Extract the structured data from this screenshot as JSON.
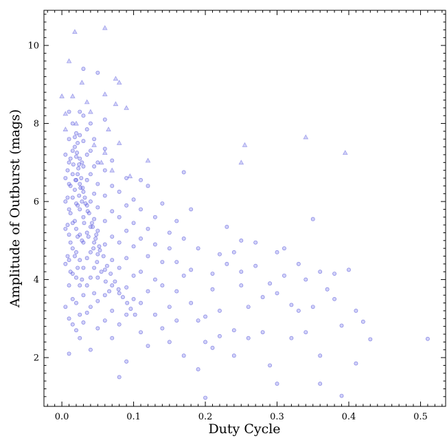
{
  "chart_data": {
    "type": "scatter",
    "title": "",
    "xlabel": "Duty Cycle",
    "ylabel": "Amplitude of Outburst (mags)",
    "xlim": [
      -0.025,
      0.535
    ],
    "ylim": [
      0.75,
      10.9
    ],
    "x_ticks": [
      0.0,
      0.1,
      0.2,
      0.3,
      0.4,
      0.5
    ],
    "x_tick_labels": [
      "0.0",
      "0.1",
      "0.2",
      "0.3",
      "0.4",
      "0.5"
    ],
    "y_ticks": [
      2,
      4,
      6,
      8,
      10
    ],
    "y_tick_labels": [
      "2",
      "4",
      "6",
      "8",
      "10"
    ],
    "grid": false,
    "legend": "none",
    "colors": {
      "circle_fill": "#7777ee",
      "circle_stroke": "#3333cc",
      "triangle_fill": "#9999ee",
      "triangle_stroke": "#5555dd"
    },
    "series": [
      {
        "marker": "circle",
        "points": [
          [
            0.51,
            2.48
          ],
          [
            0.43,
            2.47
          ],
          [
            0.42,
            2.92
          ],
          [
            0.41,
            3.2
          ],
          [
            0.41,
            1.85
          ],
          [
            0.4,
            4.25
          ],
          [
            0.39,
            2.82
          ],
          [
            0.39,
            1.02
          ],
          [
            0.38,
            4.15
          ],
          [
            0.38,
            3.5
          ],
          [
            0.37,
            3.75
          ],
          [
            0.36,
            4.2
          ],
          [
            0.36,
            2.05
          ],
          [
            0.36,
            1.33
          ],
          [
            0.35,
            5.55
          ],
          [
            0.35,
            3.3
          ],
          [
            0.34,
            4.0
          ],
          [
            0.34,
            2.65
          ],
          [
            0.33,
            4.4
          ],
          [
            0.33,
            3.2
          ],
          [
            0.32,
            3.35
          ],
          [
            0.32,
            2.5
          ],
          [
            0.31,
            4.8
          ],
          [
            0.31,
            4.1
          ],
          [
            0.3,
            3.65
          ],
          [
            0.3,
            4.7
          ],
          [
            0.3,
            1.33
          ],
          [
            0.29,
            3.9
          ],
          [
            0.29,
            1.8
          ],
          [
            0.28,
            3.55
          ],
          [
            0.28,
            2.65
          ],
          [
            0.27,
            4.95
          ],
          [
            0.27,
            4.35
          ],
          [
            0.26,
            3.3
          ],
          [
            0.26,
            2.5
          ],
          [
            0.25,
            5.0
          ],
          [
            0.25,
            4.2
          ],
          [
            0.25,
            3.85
          ],
          [
            0.24,
            4.7
          ],
          [
            0.24,
            2.7
          ],
          [
            0.24,
            2.05
          ],
          [
            0.23,
            5.35
          ],
          [
            0.23,
            4.4
          ],
          [
            0.22,
            3.2
          ],
          [
            0.22,
            4.65
          ],
          [
            0.22,
            2.55
          ],
          [
            0.21,
            3.75
          ],
          [
            0.21,
            2.25
          ],
          [
            0.21,
            4.15
          ],
          [
            0.2,
            3.05
          ],
          [
            0.2,
            2.4
          ],
          [
            0.2,
            0.97
          ],
          [
            0.19,
            4.8
          ],
          [
            0.19,
            2.95
          ],
          [
            0.19,
            1.7
          ],
          [
            0.18,
            5.8
          ],
          [
            0.18,
            4.25
          ],
          [
            0.18,
            3.4
          ],
          [
            0.17,
            6.75
          ],
          [
            0.17,
            5.05
          ],
          [
            0.17,
            4.1
          ],
          [
            0.17,
            2.05
          ],
          [
            0.16,
            5.5
          ],
          [
            0.16,
            4.45
          ],
          [
            0.16,
            3.7
          ],
          [
            0.16,
            2.95
          ],
          [
            0.15,
            5.2
          ],
          [
            0.15,
            4.8
          ],
          [
            0.15,
            3.3
          ],
          [
            0.15,
            2.4
          ],
          [
            0.14,
            5.95
          ],
          [
            0.14,
            4.45
          ],
          [
            0.14,
            3.85
          ],
          [
            0.14,
            2.75
          ],
          [
            0.13,
            5.6
          ],
          [
            0.13,
            4.9
          ],
          [
            0.13,
            4.0
          ],
          [
            0.13,
            3.1
          ],
          [
            0.12,
            6.4
          ],
          [
            0.12,
            5.3
          ],
          [
            0.12,
            4.6
          ],
          [
            0.12,
            3.7
          ],
          [
            0.12,
            2.3
          ],
          [
            0.11,
            6.55
          ],
          [
            0.11,
            5.8
          ],
          [
            0.11,
            5.05
          ],
          [
            0.11,
            4.2
          ],
          [
            0.11,
            3.4
          ],
          [
            0.11,
            2.65
          ],
          [
            0.1,
            6.05
          ],
          [
            0.1,
            5.45
          ],
          [
            0.1,
            4.85
          ],
          [
            0.1,
            4.1
          ],
          [
            0.1,
            3.5
          ],
          [
            0.09,
            6.6
          ],
          [
            0.09,
            5.9
          ],
          [
            0.09,
            5.25
          ],
          [
            0.09,
            4.55
          ],
          [
            0.09,
            3.8
          ],
          [
            0.09,
            3.1
          ],
          [
            0.09,
            1.9
          ],
          [
            0.08,
            6.25
          ],
          [
            0.08,
            5.6
          ],
          [
            0.08,
            4.95
          ],
          [
            0.08,
            4.3
          ],
          [
            0.08,
            3.65
          ],
          [
            0.08,
            2.85
          ],
          [
            0.08,
            1.5
          ],
          [
            0.07,
            7.05
          ],
          [
            0.07,
            6.4
          ],
          [
            0.07,
            5.75
          ],
          [
            0.07,
            5.1
          ],
          [
            0.07,
            4.5
          ],
          [
            0.07,
            3.85
          ],
          [
            0.07,
            3.2
          ],
          [
            0.07,
            2.5
          ],
          [
            0.06,
            7.35
          ],
          [
            0.06,
            6.8
          ],
          [
            0.06,
            6.15
          ],
          [
            0.06,
            5.5
          ],
          [
            0.06,
            4.9
          ],
          [
            0.06,
            4.25
          ],
          [
            0.06,
            3.6
          ],
          [
            0.06,
            2.95
          ],
          [
            0.06,
            8.1
          ],
          [
            0.05,
            7.0
          ],
          [
            0.05,
            6.45
          ],
          [
            0.05,
            5.85
          ],
          [
            0.05,
            5.25
          ],
          [
            0.05,
            4.65
          ],
          [
            0.05,
            4.05
          ],
          [
            0.05,
            3.45
          ],
          [
            0.05,
            2.75
          ],
          [
            0.05,
            9.3
          ],
          [
            0.045,
            7.6
          ],
          [
            0.045,
            6.9
          ],
          [
            0.045,
            6.2
          ],
          [
            0.045,
            5.55
          ],
          [
            0.045,
            4.95
          ],
          [
            0.045,
            4.3
          ],
          [
            0.045,
            3.65
          ],
          [
            0.04,
            8.0
          ],
          [
            0.04,
            7.3
          ],
          [
            0.04,
            6.7
          ],
          [
            0.04,
            6.0
          ],
          [
            0.04,
            5.35
          ],
          [
            0.04,
            4.7
          ],
          [
            0.04,
            4.05
          ],
          [
            0.04,
            3.3
          ],
          [
            0.04,
            2.2
          ],
          [
            0.035,
            7.85
          ],
          [
            0.035,
            7.2
          ],
          [
            0.035,
            6.55
          ],
          [
            0.035,
            5.9
          ],
          [
            0.035,
            5.2
          ],
          [
            0.035,
            4.55
          ],
          [
            0.035,
            3.85
          ],
          [
            0.035,
            3.15
          ],
          [
            0.03,
            9.4
          ],
          [
            0.03,
            8.2
          ],
          [
            0.03,
            7.55
          ],
          [
            0.03,
            6.9
          ],
          [
            0.03,
            6.25
          ],
          [
            0.03,
            5.6
          ],
          [
            0.03,
            4.95
          ],
          [
            0.03,
            4.3
          ],
          [
            0.03,
            3.6
          ],
          [
            0.03,
            2.9
          ],
          [
            0.028,
            7.0
          ],
          [
            0.028,
            6.0
          ],
          [
            0.028,
            5.0
          ],
          [
            0.028,
            4.0
          ],
          [
            0.025,
            8.3
          ],
          [
            0.025,
            7.7
          ],
          [
            0.025,
            7.1
          ],
          [
            0.025,
            6.45
          ],
          [
            0.025,
            5.8
          ],
          [
            0.025,
            5.15
          ],
          [
            0.025,
            4.5
          ],
          [
            0.025,
            3.85
          ],
          [
            0.025,
            3.1
          ],
          [
            0.025,
            2.5
          ],
          [
            0.022,
            7.5
          ],
          [
            0.022,
            6.7
          ],
          [
            0.022,
            5.9
          ],
          [
            0.022,
            5.1
          ],
          [
            0.022,
            4.3
          ],
          [
            0.02,
            7.75
          ],
          [
            0.02,
            7.15
          ],
          [
            0.02,
            6.55
          ],
          [
            0.02,
            5.95
          ],
          [
            0.02,
            5.3
          ],
          [
            0.02,
            4.7
          ],
          [
            0.02,
            4.05
          ],
          [
            0.02,
            3.4
          ],
          [
            0.02,
            2.7
          ],
          [
            0.018,
            7.4
          ],
          [
            0.018,
            6.3
          ],
          [
            0.018,
            5.5
          ],
          [
            0.018,
            4.6
          ],
          [
            0.015,
            8.0
          ],
          [
            0.015,
            7.3
          ],
          [
            0.015,
            6.7
          ],
          [
            0.015,
            6.1
          ],
          [
            0.015,
            5.45
          ],
          [
            0.015,
            4.8
          ],
          [
            0.015,
            4.15
          ],
          [
            0.015,
            3.5
          ],
          [
            0.015,
            2.85
          ],
          [
            0.012,
            7.1
          ],
          [
            0.012,
            6.4
          ],
          [
            0.012,
            5.7
          ],
          [
            0.012,
            4.95
          ],
          [
            0.012,
            4.2
          ],
          [
            0.01,
            8.3
          ],
          [
            0.01,
            7.6
          ],
          [
            0.01,
            7.0
          ],
          [
            0.01,
            6.45
          ],
          [
            0.01,
            5.8
          ],
          [
            0.01,
            5.15
          ],
          [
            0.01,
            4.5
          ],
          [
            0.01,
            3.85
          ],
          [
            0.01,
            3.0
          ],
          [
            0.01,
            2.1
          ],
          [
            0.008,
            6.8
          ],
          [
            0.008,
            6.1
          ],
          [
            0.008,
            5.4
          ],
          [
            0.008,
            4.6
          ],
          [
            0.005,
            7.2
          ],
          [
            0.005,
            6.6
          ],
          [
            0.005,
            6.0
          ],
          [
            0.005,
            5.3
          ],
          [
            0.005,
            4.4
          ],
          [
            0.005,
            3.3
          ],
          [
            0.024,
            6.95
          ],
          [
            0.026,
            6.35
          ],
          [
            0.032,
            6.1
          ],
          [
            0.036,
            5.75
          ],
          [
            0.042,
            5.45
          ],
          [
            0.048,
            5.15
          ],
          [
            0.052,
            4.85
          ],
          [
            0.058,
            4.6
          ],
          [
            0.063,
            4.35
          ],
          [
            0.068,
            4.15
          ],
          [
            0.074,
            3.95
          ],
          [
            0.079,
            3.75
          ],
          [
            0.085,
            3.55
          ],
          [
            0.091,
            3.4
          ],
          [
            0.096,
            3.25
          ],
          [
            0.102,
            3.1
          ],
          [
            0.018,
            7.65
          ],
          [
            0.021,
            7.25
          ],
          [
            0.023,
            6.85
          ],
          [
            0.027,
            6.6
          ],
          [
            0.029,
            6.35
          ],
          [
            0.033,
            5.95
          ],
          [
            0.038,
            5.7
          ],
          [
            0.043,
            5.35
          ],
          [
            0.047,
            5.05
          ],
          [
            0.053,
            4.75
          ],
          [
            0.016,
            6.95
          ],
          [
            0.019,
            6.55
          ],
          [
            0.024,
            6.15
          ],
          [
            0.031,
            5.45
          ],
          [
            0.037,
            5.1
          ],
          [
            0.044,
            4.8
          ],
          [
            0.049,
            4.45
          ],
          [
            0.055,
            4.2
          ],
          [
            0.061,
            3.95
          ],
          [
            0.066,
            3.7
          ]
        ]
      },
      {
        "marker": "triangle",
        "points": [
          [
            0.018,
            10.35
          ],
          [
            0.06,
            10.45
          ],
          [
            0.01,
            9.6
          ],
          [
            0.028,
            9.05
          ],
          [
            0.075,
            9.15
          ],
          [
            0.08,
            9.05
          ],
          [
            0.06,
            8.75
          ],
          [
            0.075,
            8.5
          ],
          [
            0.035,
            8.55
          ],
          [
            0.0,
            8.7
          ],
          [
            0.015,
            8.7
          ],
          [
            0.005,
            8.25
          ],
          [
            0.04,
            8.3
          ],
          [
            0.065,
            7.85
          ],
          [
            0.09,
            8.4
          ],
          [
            0.08,
            7.5
          ],
          [
            0.34,
            7.65
          ],
          [
            0.395,
            7.25
          ],
          [
            0.255,
            7.45
          ],
          [
            0.25,
            7.0
          ],
          [
            0.12,
            7.05
          ],
          [
            0.095,
            6.65
          ],
          [
            0.06,
            7.25
          ],
          [
            0.005,
            7.85
          ],
          [
            0.02,
            8.0
          ],
          [
            0.045,
            7.45
          ],
          [
            0.055,
            7.0
          ],
          [
            0.07,
            6.8
          ]
        ]
      }
    ]
  }
}
